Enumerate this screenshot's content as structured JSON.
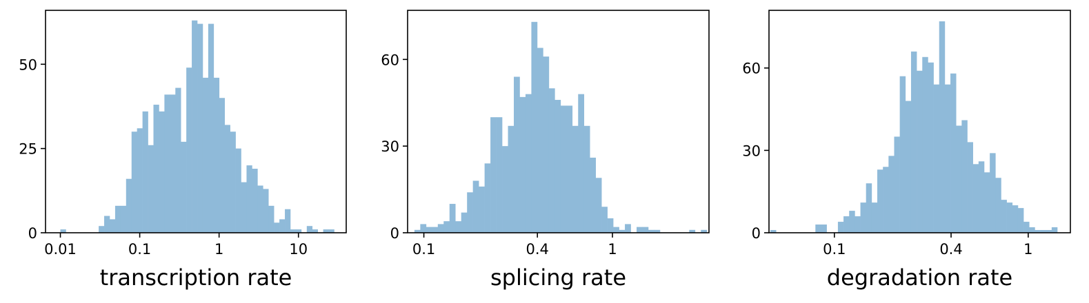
{
  "chart_data": [
    {
      "type": "bar",
      "subtype": "histogram",
      "title": "",
      "xlabel": "transcription rate",
      "ylabel": "",
      "xscale": "log",
      "xlim": [
        0.0065,
        40
      ],
      "ylim": [
        0,
        66
      ],
      "xticks": [
        {
          "value": 0.01,
          "label": "0.01"
        },
        {
          "value": 0.1,
          "label": "0.1"
        },
        {
          "value": 1,
          "label": "1"
        },
        {
          "value": 10,
          "label": "10"
        }
      ],
      "yticks": [
        {
          "value": 0,
          "label": "0"
        },
        {
          "value": 25,
          "label": "25"
        },
        {
          "value": 50,
          "label": "50"
        }
      ],
      "grid": false,
      "color": "#8fbad9",
      "bins": {
        "log10_min": -2.0,
        "log10_max": 1.45,
        "counts": [
          1,
          0,
          0,
          0,
          0,
          0,
          0,
          2,
          5,
          4,
          8,
          8,
          16,
          30,
          31,
          36,
          26,
          38,
          36,
          41,
          41,
          43,
          27,
          49,
          63,
          62,
          46,
          62,
          46,
          40,
          32,
          30,
          25,
          15,
          20,
          19,
          14,
          13,
          8,
          3,
          4,
          7,
          1,
          1,
          0,
          2,
          1,
          0,
          1,
          1
        ]
      }
    },
    {
      "type": "bar",
      "subtype": "histogram",
      "title": "",
      "xlabel": "splicing rate",
      "ylabel": "",
      "xscale": "log",
      "xlim": [
        0.082,
        3.25
      ],
      "ylim": [
        0,
        77
      ],
      "xticks": [
        {
          "value": 0.1,
          "label": "0.1"
        },
        {
          "value": 0.4,
          "label": "0.4"
        },
        {
          "value": 1,
          "label": "1"
        }
      ],
      "yticks": [
        {
          "value": 0,
          "label": "0"
        },
        {
          "value": 30,
          "label": "30"
        },
        {
          "value": 60,
          "label": "60"
        }
      ],
      "grid": false,
      "color": "#8fbad9",
      "bins": {
        "log10_min": -1.05,
        "log10_max": 0.5,
        "counts": [
          1,
          3,
          2,
          2,
          3,
          4,
          10,
          4,
          7,
          14,
          18,
          16,
          24,
          40,
          40,
          30,
          37,
          54,
          47,
          48,
          73,
          64,
          61,
          50,
          46,
          44,
          44,
          37,
          48,
          37,
          26,
          19,
          9,
          5,
          2,
          1,
          3,
          0,
          2,
          2,
          1,
          1,
          0,
          0,
          0,
          0,
          0,
          1,
          0,
          1
        ]
      }
    },
    {
      "type": "bar",
      "subtype": "histogram",
      "title": "",
      "xlabel": "degradation rate",
      "ylabel": "",
      "xscale": "log",
      "xlim": [
        0.046,
        1.65
      ],
      "ylim": [
        0,
        81
      ],
      "xticks": [
        {
          "value": 0.1,
          "label": "0.1"
        },
        {
          "value": 0.4,
          "label": "0.4"
        },
        {
          "value": 1,
          "label": "1"
        }
      ],
      "yticks": [
        {
          "value": 0,
          "label": "0"
        },
        {
          "value": 30,
          "label": "30"
        },
        {
          "value": 60,
          "label": "60"
        }
      ],
      "grid": false,
      "color": "#8fbad9",
      "bins": {
        "log10_min": -1.33,
        "log10_max": 0.15,
        "counts": [
          1,
          0,
          0,
          0,
          0,
          0,
          0,
          0,
          3,
          3,
          0,
          0,
          4,
          6,
          8,
          6,
          11,
          18,
          11,
          23,
          24,
          28,
          35,
          57,
          48,
          66,
          59,
          64,
          62,
          54,
          77,
          54,
          58,
          39,
          41,
          33,
          25,
          26,
          22,
          29,
          20,
          12,
          11,
          10,
          9,
          4,
          2,
          1,
          1,
          1,
          2
        ]
      }
    }
  ]
}
